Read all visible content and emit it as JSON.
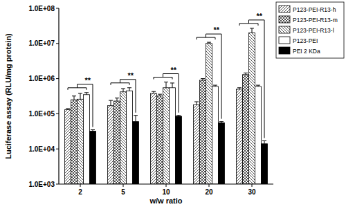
{
  "chart_data": {
    "type": "bar",
    "x_label": "w/w ratio",
    "y_label": "Luciferase assay (RLU/mg protein)",
    "categories": [
      "2",
      "5",
      "10",
      "20",
      "30"
    ],
    "log": "y",
    "legend": "right",
    "ylim": [
      1000,
      100000000
    ],
    "yticks": [
      {
        "value": 1000,
        "label": "1.0E+03"
      },
      {
        "value": 10000,
        "label": "1.0E+04"
      },
      {
        "value": 100000,
        "label": "1.0E+05"
      },
      {
        "value": 1000000,
        "label": "1.0E+06"
      },
      {
        "value": 10000000,
        "label": "1.0E+07"
      },
      {
        "value": 100000000,
        "label": "1.0E+08"
      }
    ],
    "series": [
      {
        "name": "P123-PEI-R13-h",
        "color": "#ffffff",
        "values": [
          130000,
          170000,
          380000,
          180000,
          500000
        ],
        "errors": [
          10000,
          70000,
          50000,
          40000,
          50000
        ]
      },
      {
        "name": "P123-PEI-R13-m",
        "color": "#ffffff",
        "values": [
          250000,
          230000,
          320000,
          900000,
          1300000
        ],
        "errors": [
          70000,
          50000,
          40000,
          100000,
          150000
        ]
      },
      {
        "name": "P123-PEI-R13-l",
        "color": "#ffffff",
        "values": [
          260000,
          420000,
          550000,
          10000000,
          20000000
        ],
        "errors": [
          120000,
          100000,
          250000,
          800000,
          7000000
        ]
      },
      {
        "name": "P123-PEI",
        "color": "#ffffff",
        "values": [
          350000,
          450000,
          550000,
          600000,
          600000
        ],
        "errors": [
          50000,
          100000,
          200000,
          50000,
          50000
        ]
      },
      {
        "name": "PEI 2 KDa",
        "color": "#000000",
        "values": [
          32000,
          60000,
          85000,
          55000,
          14000
        ],
        "errors": [
          3000,
          30000,
          5000,
          5000,
          3000
        ]
      }
    ],
    "annotations": [
      "**",
      "**",
      "**",
      "**",
      "**"
    ]
  }
}
